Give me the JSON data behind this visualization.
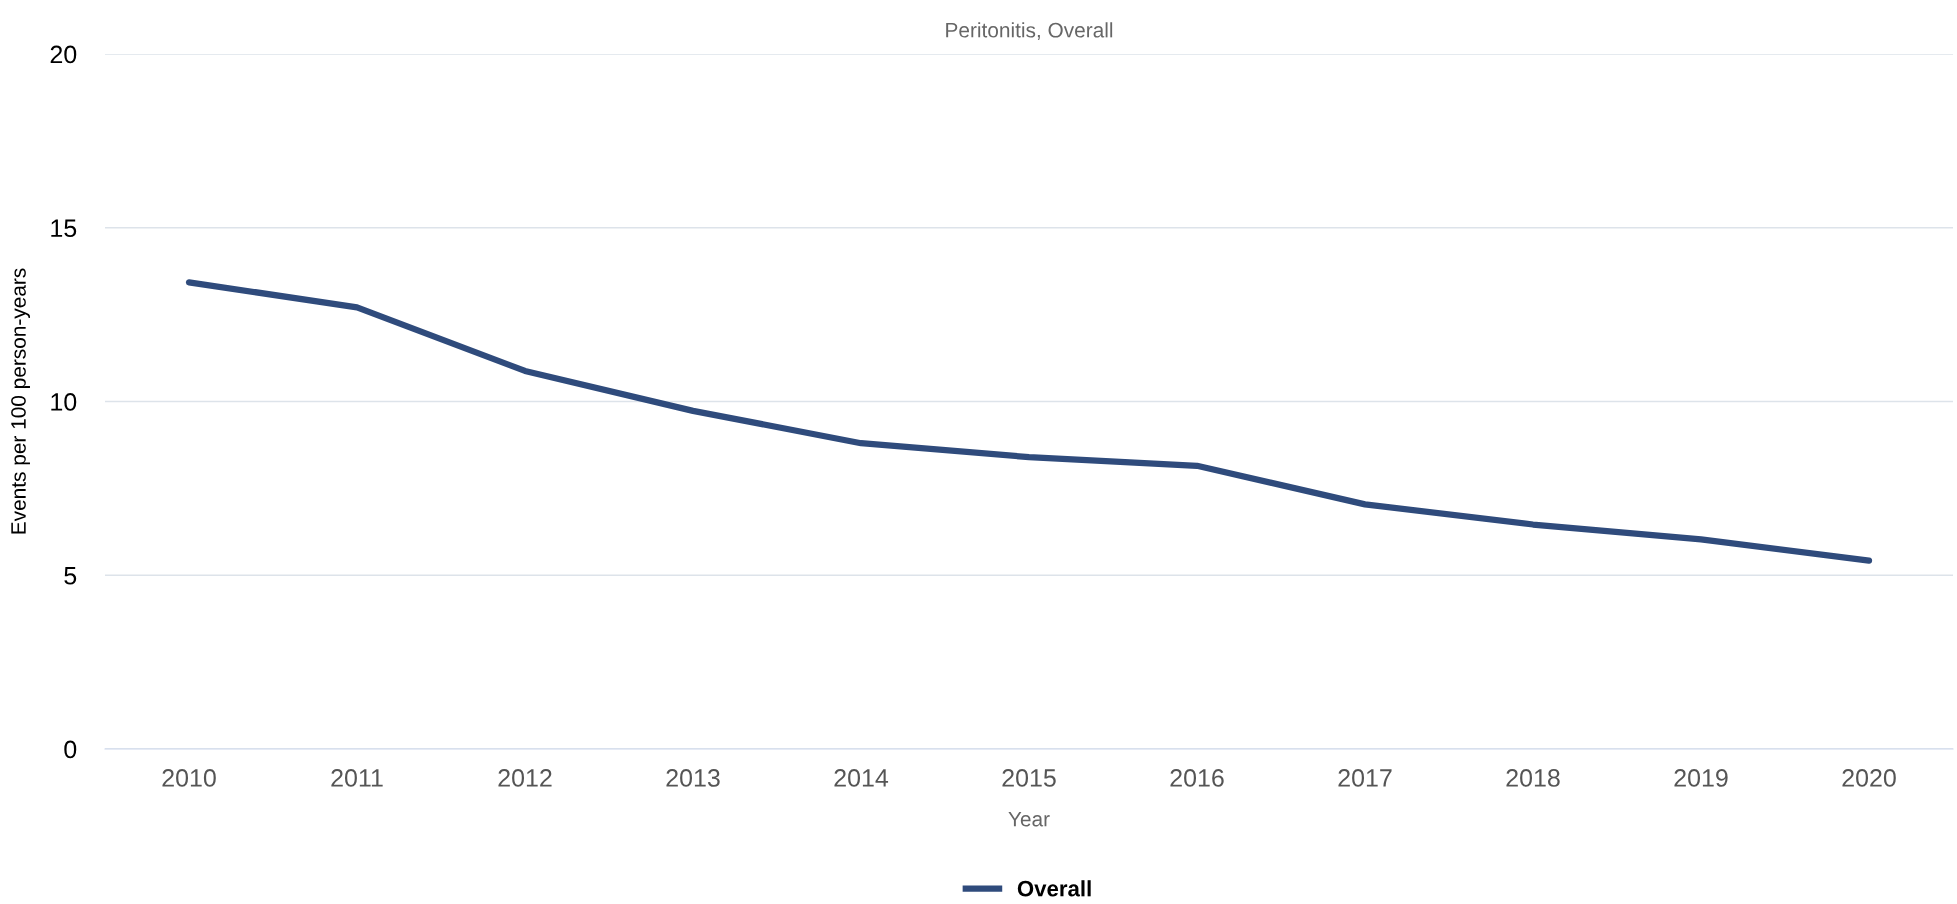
{
  "chart_data": {
    "type": "line",
    "title": "Peritonitis, Overall",
    "xlabel": "Year",
    "ylabel": "Events per 100 person-years",
    "categories": [
      "2010",
      "2011",
      "2012",
      "2013",
      "2014",
      "2015",
      "2016",
      "2017",
      "2018",
      "2019",
      "2020"
    ],
    "series": [
      {
        "name": "Overall",
        "color": "#2f4b7c",
        "values": [
          13.43,
          12.71,
          10.88,
          9.73,
          8.8,
          8.4,
          8.15,
          7.04,
          6.46,
          6.03,
          5.42
        ]
      }
    ],
    "ylim": [
      0,
      20
    ],
    "yticks": [
      0,
      5,
      10,
      15,
      20
    ],
    "grid": "y",
    "legend": "bottom",
    "marker": "none",
    "line_style": "solid"
  }
}
